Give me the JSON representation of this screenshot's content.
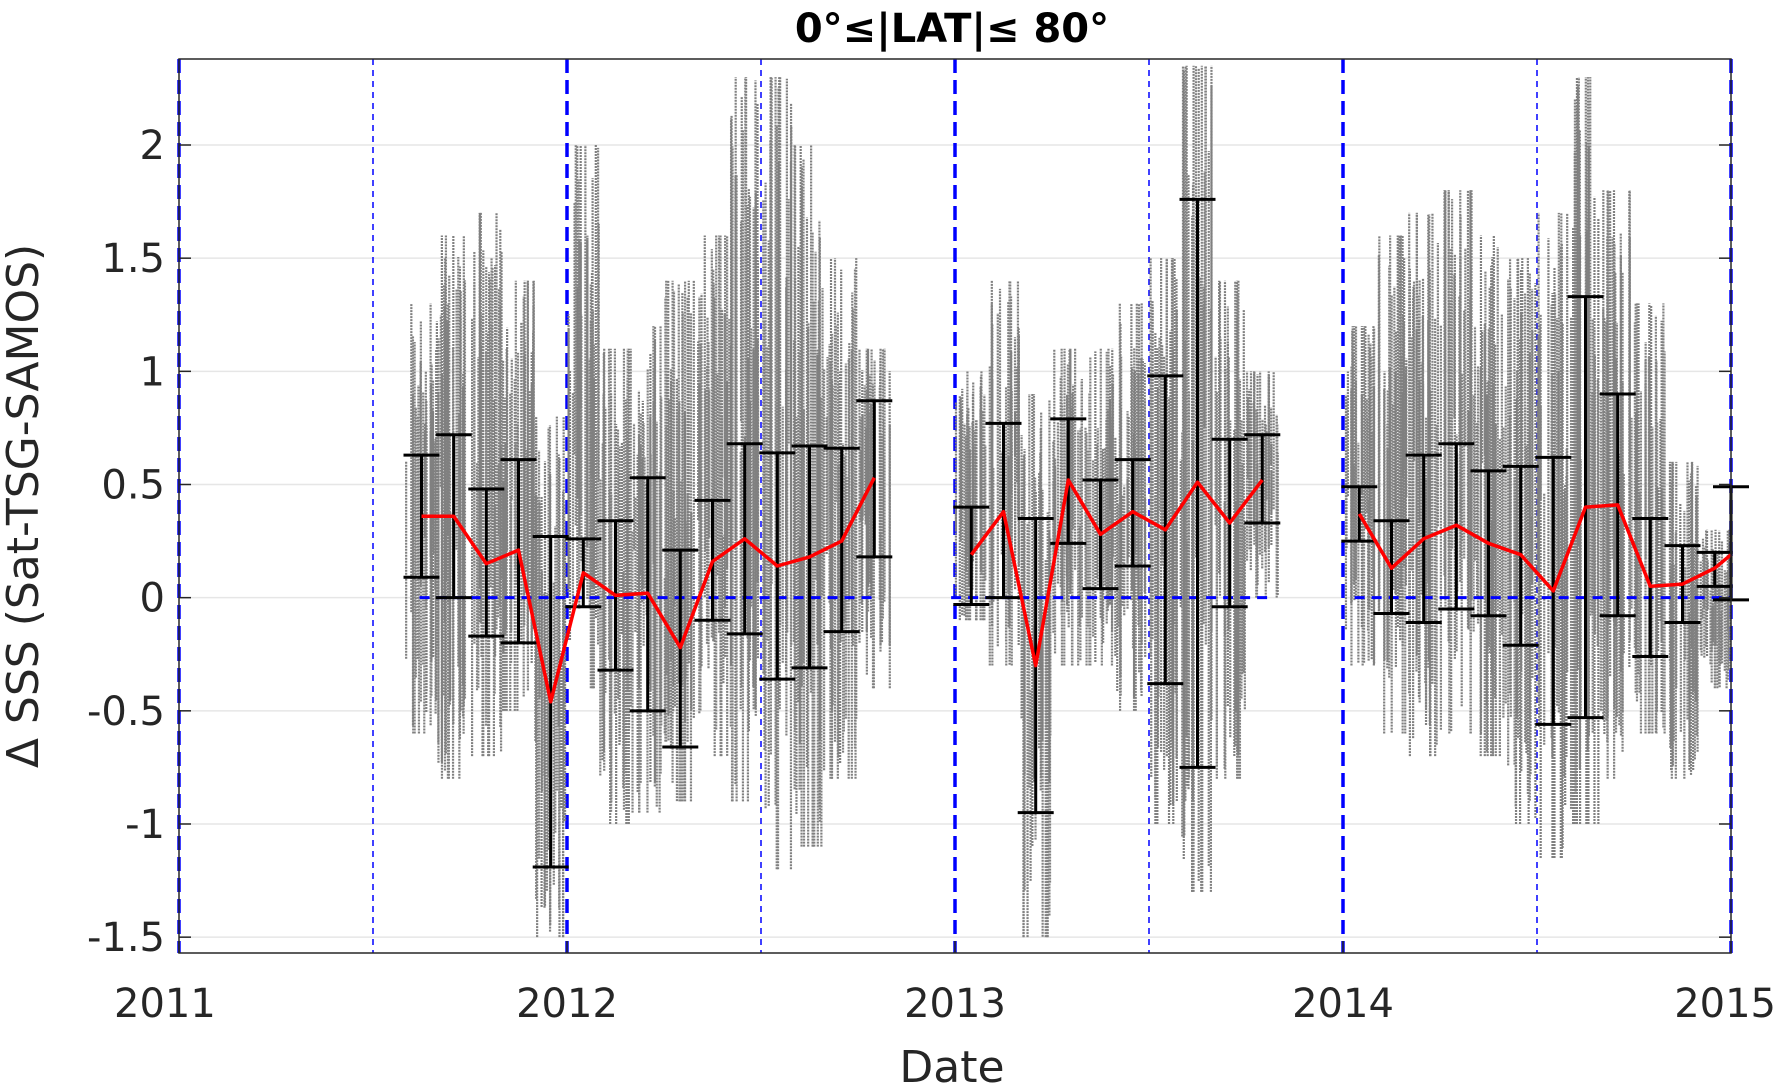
{
  "chart_data": {
    "type": "line",
    "title": "0°≤|LAT|≤ 80°",
    "xlabel": "Date",
    "ylabel": "Δ SSS (Sat-TSG-SAMOS)",
    "xlim": [
      2011,
      2015
    ],
    "ylim": [
      -1.57,
      2.38
    ],
    "x_ticks": [
      2011,
      2012,
      2013,
      2014,
      2015
    ],
    "x_tick_labels": [
      "2011",
      "2012",
      "2013",
      "2014",
      "2015"
    ],
    "y_ticks": [
      -1.5,
      -1,
      -0.5,
      0,
      0.5,
      1,
      1.5,
      2
    ],
    "y_tick_labels": [
      "-1.5",
      "-1",
      "-0.5",
      "0",
      "0.5",
      "1",
      "1.5",
      "2"
    ],
    "grid": "horizontal",
    "year_lines": [
      2011,
      2012,
      2013,
      2014,
      2015
    ],
    "midyear_lines": [
      2011.5,
      2012.5,
      2013.5,
      2014.5
    ],
    "zero_lines": [
      [
        2011.62,
        2012.79
      ],
      [
        2012.99,
        2013.81
      ],
      [
        2014.03,
        2015.0
      ]
    ],
    "colors": {
      "mean": "#ff0000",
      "errorbar": "#000000",
      "scatter": "#808080",
      "reference": "#0000ff",
      "grid": "#e6e6e6"
    },
    "series": [
      {
        "style": "red mean line with black error bars",
        "segments": [
          [
            {
              "x": 2011.625,
              "y": 0.36,
              "lo": 0.09,
              "hi": 0.63
            },
            {
              "x": 2011.708,
              "y": 0.36,
              "lo": 0.0,
              "hi": 0.72
            },
            {
              "x": 2011.792,
              "y": 0.15,
              "lo": -0.17,
              "hi": 0.48
            },
            {
              "x": 2011.875,
              "y": 0.21,
              "lo": -0.2,
              "hi": 0.61
            },
            {
              "x": 2011.958,
              "y": -0.46,
              "lo": -1.19,
              "hi": 0.27
            },
            {
              "x": 2012.042,
              "y": 0.11,
              "lo": -0.04,
              "hi": 0.26
            },
            {
              "x": 2012.125,
              "y": 0.01,
              "lo": -0.32,
              "hi": 0.34
            },
            {
              "x": 2012.208,
              "y": 0.02,
              "lo": -0.5,
              "hi": 0.53
            },
            {
              "x": 2012.292,
              "y": -0.22,
              "lo": -0.66,
              "hi": 0.21
            },
            {
              "x": 2012.375,
              "y": 0.16,
              "lo": -0.1,
              "hi": 0.43
            },
            {
              "x": 2012.458,
              "y": 0.26,
              "lo": -0.16,
              "hi": 0.68
            },
            {
              "x": 2012.542,
              "y": 0.14,
              "lo": -0.36,
              "hi": 0.64
            },
            {
              "x": 2012.625,
              "y": 0.18,
              "lo": -0.31,
              "hi": 0.67
            },
            {
              "x": 2012.708,
              "y": 0.25,
              "lo": -0.15,
              "hi": 0.66
            },
            {
              "x": 2012.792,
              "y": 0.53,
              "lo": 0.18,
              "hi": 0.87
            }
          ],
          [
            {
              "x": 2013.042,
              "y": 0.19,
              "lo": -0.03,
              "hi": 0.4
            },
            {
              "x": 2013.125,
              "y": 0.38,
              "lo": 0.0,
              "hi": 0.77
            },
            {
              "x": 2013.208,
              "y": -0.3,
              "lo": -0.95,
              "hi": 0.35
            },
            {
              "x": 2013.292,
              "y": 0.52,
              "lo": 0.24,
              "hi": 0.79
            },
            {
              "x": 2013.375,
              "y": 0.28,
              "lo": 0.04,
              "hi": 0.52
            },
            {
              "x": 2013.458,
              "y": 0.38,
              "lo": 0.14,
              "hi": 0.61
            },
            {
              "x": 2013.542,
              "y": 0.3,
              "lo": -0.38,
              "hi": 0.98
            },
            {
              "x": 2013.625,
              "y": 0.51,
              "lo": -0.75,
              "hi": 1.76
            },
            {
              "x": 2013.708,
              "y": 0.33,
              "lo": -0.04,
              "hi": 0.7
            },
            {
              "x": 2013.792,
              "y": 0.52,
              "lo": 0.33,
              "hi": 0.72
            }
          ],
          [
            {
              "x": 2014.042,
              "y": 0.37,
              "lo": 0.25,
              "hi": 0.49
            },
            {
              "x": 2014.125,
              "y": 0.13,
              "lo": -0.07,
              "hi": 0.34
            },
            {
              "x": 2014.208,
              "y": 0.26,
              "lo": -0.11,
              "hi": 0.63
            },
            {
              "x": 2014.292,
              "y": 0.32,
              "lo": -0.05,
              "hi": 0.68
            },
            {
              "x": 2014.375,
              "y": 0.24,
              "lo": -0.08,
              "hi": 0.56
            },
            {
              "x": 2014.458,
              "y": 0.19,
              "lo": -0.21,
              "hi": 0.58
            },
            {
              "x": 2014.542,
              "y": 0.03,
              "lo": -0.56,
              "hi": 0.62
            },
            {
              "x": 2014.625,
              "y": 0.4,
              "lo": -0.53,
              "hi": 1.33
            },
            {
              "x": 2014.708,
              "y": 0.41,
              "lo": -0.08,
              "hi": 0.9
            },
            {
              "x": 2014.792,
              "y": 0.05,
              "lo": -0.26,
              "hi": 0.35
            },
            {
              "x": 2014.875,
              "y": 0.06,
              "lo": -0.11,
              "hi": 0.23
            },
            {
              "x": 2014.958,
              "y": 0.13,
              "lo": 0.05,
              "hi": 0.2
            },
            {
              "x": 2015.0,
              "y": 0.19,
              "lo": -0.01,
              "hi": 0.49
            }
          ]
        ]
      },
      {
        "style": "grey scatter",
        "spread": [
          {
            "x": 2011.625,
            "lo": -0.6,
            "hi": 1.3
          },
          {
            "x": 2011.708,
            "lo": -0.8,
            "hi": 1.6
          },
          {
            "x": 2011.792,
            "lo": -0.7,
            "hi": 1.7
          },
          {
            "x": 2011.875,
            "lo": -0.5,
            "hi": 1.4
          },
          {
            "x": 2011.958,
            "lo": -1.5,
            "hi": 0.8
          },
          {
            "x": 2012.042,
            "lo": -0.4,
            "hi": 2.0
          },
          {
            "x": 2012.125,
            "lo": -1.0,
            "hi": 1.1
          },
          {
            "x": 2012.208,
            "lo": -0.95,
            "hi": 1.2
          },
          {
            "x": 2012.292,
            "lo": -0.9,
            "hi": 1.4
          },
          {
            "x": 2012.375,
            "lo": -0.7,
            "hi": 1.6
          },
          {
            "x": 2012.458,
            "lo": -0.9,
            "hi": 2.3
          },
          {
            "x": 2012.542,
            "lo": -1.2,
            "hi": 2.3
          },
          {
            "x": 2012.625,
            "lo": -1.1,
            "hi": 2.0
          },
          {
            "x": 2012.708,
            "lo": -0.8,
            "hi": 1.5
          },
          {
            "x": 2012.792,
            "lo": -0.4,
            "hi": 1.1
          },
          {
            "x": 2013.042,
            "lo": -0.1,
            "hi": 1.0
          },
          {
            "x": 2013.125,
            "lo": -0.3,
            "hi": 1.4
          },
          {
            "x": 2013.208,
            "lo": -1.5,
            "hi": 0.9
          },
          {
            "x": 2013.292,
            "lo": -0.3,
            "hi": 1.1
          },
          {
            "x": 2013.375,
            "lo": -0.3,
            "hi": 1.1
          },
          {
            "x": 2013.458,
            "lo": -0.5,
            "hi": 1.3
          },
          {
            "x": 2013.542,
            "lo": -1.0,
            "hi": 1.5
          },
          {
            "x": 2013.625,
            "lo": -1.3,
            "hi": 2.35
          },
          {
            "x": 2013.708,
            "lo": -0.8,
            "hi": 1.4
          },
          {
            "x": 2013.792,
            "lo": 0.0,
            "hi": 1.0
          },
          {
            "x": 2014.042,
            "lo": -0.3,
            "hi": 1.2
          },
          {
            "x": 2014.125,
            "lo": -0.6,
            "hi": 1.6
          },
          {
            "x": 2014.208,
            "lo": -0.7,
            "hi": 1.7
          },
          {
            "x": 2014.292,
            "lo": -0.6,
            "hi": 1.8
          },
          {
            "x": 2014.375,
            "lo": -0.7,
            "hi": 1.6
          },
          {
            "x": 2014.458,
            "lo": -1.0,
            "hi": 1.5
          },
          {
            "x": 2014.542,
            "lo": -1.15,
            "hi": 1.7
          },
          {
            "x": 2014.625,
            "lo": -1.0,
            "hi": 2.3
          },
          {
            "x": 2014.708,
            "lo": -0.8,
            "hi": 1.8
          },
          {
            "x": 2014.792,
            "lo": -0.6,
            "hi": 1.3
          },
          {
            "x": 2014.875,
            "lo": -0.8,
            "hi": 0.6
          },
          {
            "x": 2014.958,
            "lo": -0.4,
            "hi": 0.3
          }
        ]
      }
    ]
  }
}
